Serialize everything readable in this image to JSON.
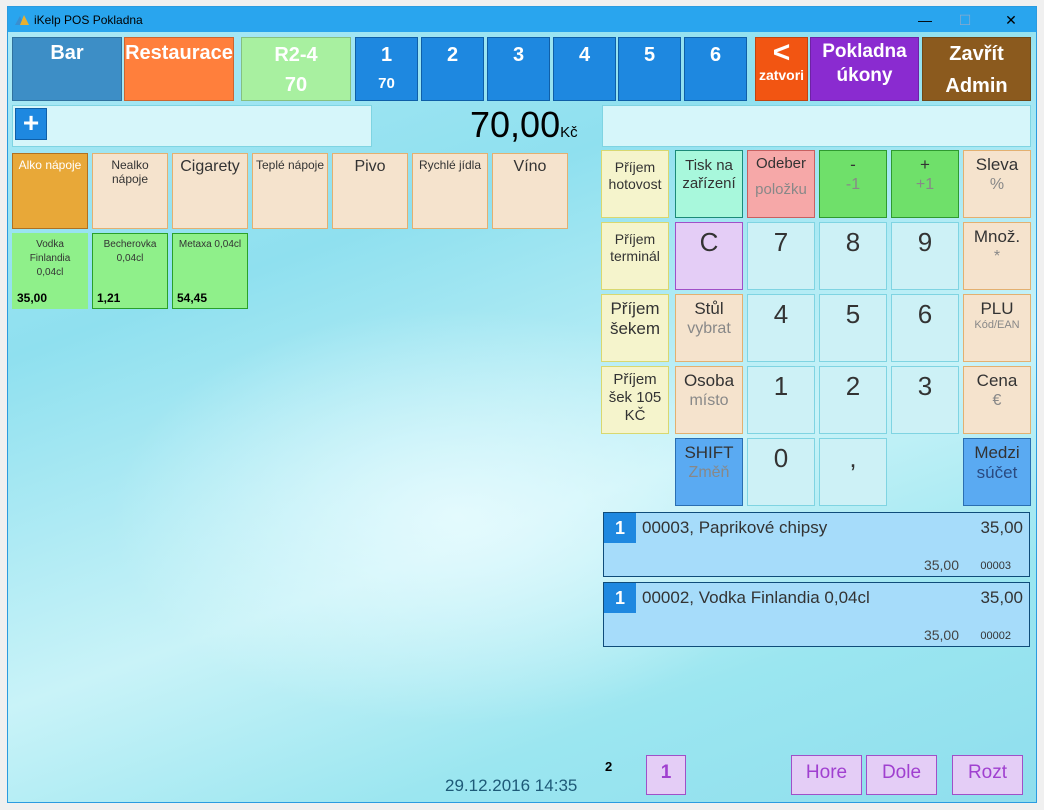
{
  "window": {
    "title": "iKelp POS Pokladna",
    "minimize_icon": "minimize-icon",
    "maximize_icon": "maximize-icon",
    "close_icon": "close-icon"
  },
  "top": {
    "bar": "Bar",
    "restaurace": "Restaurace",
    "table": {
      "name": "R2-4",
      "total": "70"
    },
    "accounts": [
      {
        "num": "1",
        "total": "70"
      },
      {
        "num": "2",
        "total": ""
      },
      {
        "num": "3",
        "total": ""
      },
      {
        "num": "4",
        "total": ""
      },
      {
        "num": "5",
        "total": ""
      },
      {
        "num": "6",
        "total": ""
      }
    ],
    "close": {
      "symbol": "<",
      "label": "zatvori"
    },
    "pokladna": {
      "line1": "Pokladna",
      "line2": "úkony"
    },
    "zavrit": {
      "line1": "Zavřít",
      "line2": "Admin"
    }
  },
  "search": {
    "add_icon": "+",
    "value": ""
  },
  "total": {
    "amount": "70,00",
    "currency": "Kč"
  },
  "keypad_input": {
    "value": ""
  },
  "categories": [
    {
      "label": "Alko nápoje",
      "active": true
    },
    {
      "label": "Nealko nápoje"
    },
    {
      "label": "Cigarety"
    },
    {
      "label": "Teplé nápoje"
    },
    {
      "label": "Pivo"
    },
    {
      "label": "Rychlé jídla"
    },
    {
      "label": "Víno"
    }
  ],
  "products": [
    {
      "name": "Vodka Finlandia 0,04cl",
      "price": "35,00"
    },
    {
      "name": "Becherovka 0,04cl",
      "price": "1,21"
    },
    {
      "name": "Metaxa 0,04cl",
      "price": "54,45"
    }
  ],
  "keypad": [
    {
      "label": "Příjem hotovost",
      "sub": ""
    },
    {
      "label": "Tisk na zařízení",
      "sub": ""
    },
    {
      "label": "Odeber",
      "sub": "položku"
    },
    {
      "label": "-",
      "sub": "-1"
    },
    {
      "label": "+",
      "sub": "+1"
    },
    {
      "label": "Sleva",
      "sub": "%"
    },
    {
      "label": "Příjem terminál",
      "sub": ""
    },
    {
      "label": "C",
      "sub": ""
    },
    {
      "label": "7",
      "sub": ""
    },
    {
      "label": "8",
      "sub": ""
    },
    {
      "label": "9",
      "sub": ""
    },
    {
      "label": "Množ.",
      "sub": "*"
    },
    {
      "label": "Příjem šekem",
      "sub": ""
    },
    {
      "label": "Stůl",
      "sub": "vybrat"
    },
    {
      "label": "4",
      "sub": ""
    },
    {
      "label": "5",
      "sub": ""
    },
    {
      "label": "6",
      "sub": ""
    },
    {
      "label": "PLU",
      "sub": "Kód/EAN"
    },
    {
      "label": "Příjem šek 105 KČ",
      "sub": ""
    },
    {
      "label": "Osoba",
      "sub": "místo"
    },
    {
      "label": "1",
      "sub": ""
    },
    {
      "label": "2",
      "sub": ""
    },
    {
      "label": "3",
      "sub": ""
    },
    {
      "label": "Cena",
      "sub": "€"
    },
    {
      "label": "SHIFT",
      "sub": "Změň"
    },
    {
      "label": "0",
      "sub": ""
    },
    {
      "label": ",",
      "sub": ""
    },
    {
      "label": "Medzi",
      "sub": "súčet"
    }
  ],
  "order_lines": [
    {
      "qty": "1",
      "name": "00003, Paprikové chipsy",
      "price": "35,00",
      "unit_price": "35,00",
      "code": "00003"
    },
    {
      "qty": "1",
      "name": "00002, Vodka Finlandia 0,04cl",
      "price": "35,00",
      "unit_price": "35,00",
      "code": "00002"
    }
  ],
  "footer": {
    "datetime": "29.12.2016 14:35",
    "count": "2",
    "page": "1",
    "up": "Hore",
    "down": "Dole",
    "split": "Rozt"
  }
}
